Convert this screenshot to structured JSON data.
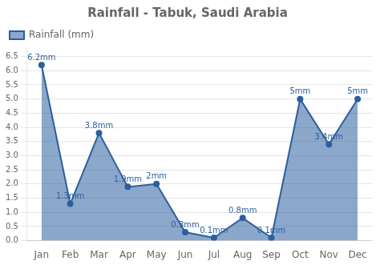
{
  "chart_data": {
    "type": "line",
    "title": "Rainfall - Tabuk, Saudi Arabia",
    "categories": [
      "Jan",
      "Feb",
      "Mar",
      "Apr",
      "May",
      "Jun",
      "Jul",
      "Aug",
      "Sep",
      "Oct",
      "Nov",
      "Dec"
    ],
    "series": [
      {
        "name": "Rainfall (mm)",
        "color": "#2c5f9e",
        "values": [
          6.2,
          1.3,
          3.8,
          1.9,
          2.0,
          0.3,
          0.1,
          0.8,
          0.1,
          5.0,
          3.4,
          5.0
        ],
        "value_labels": [
          "6.2mm",
          "1.3mm",
          "3.8mm",
          "1.9mm",
          "2mm",
          "0.3mm",
          "0.1mm",
          "0.8mm",
          "0.1mm",
          "5mm",
          "3.4mm",
          "5mm"
        ]
      }
    ],
    "data_labels": true,
    "ylim": [
      0,
      6.8
    ],
    "yticks": [
      {
        "value": 0,
        "label": "0.0"
      },
      0.5,
      {
        "value": 1,
        "label": "1.0"
      },
      1.5,
      {
        "value": 2,
        "label": "2.0"
      },
      2.5,
      {
        "value": 3,
        "label": "3.0"
      },
      3.5,
      {
        "value": 4,
        "label": "4.0"
      },
      4.5,
      {
        "value": 5,
        "label": "5.0"
      },
      5.5,
      {
        "value": 6,
        "label": "6.0"
      },
      6.5
    ],
    "grid": true,
    "legend": "upper left",
    "marker": "circle"
  }
}
